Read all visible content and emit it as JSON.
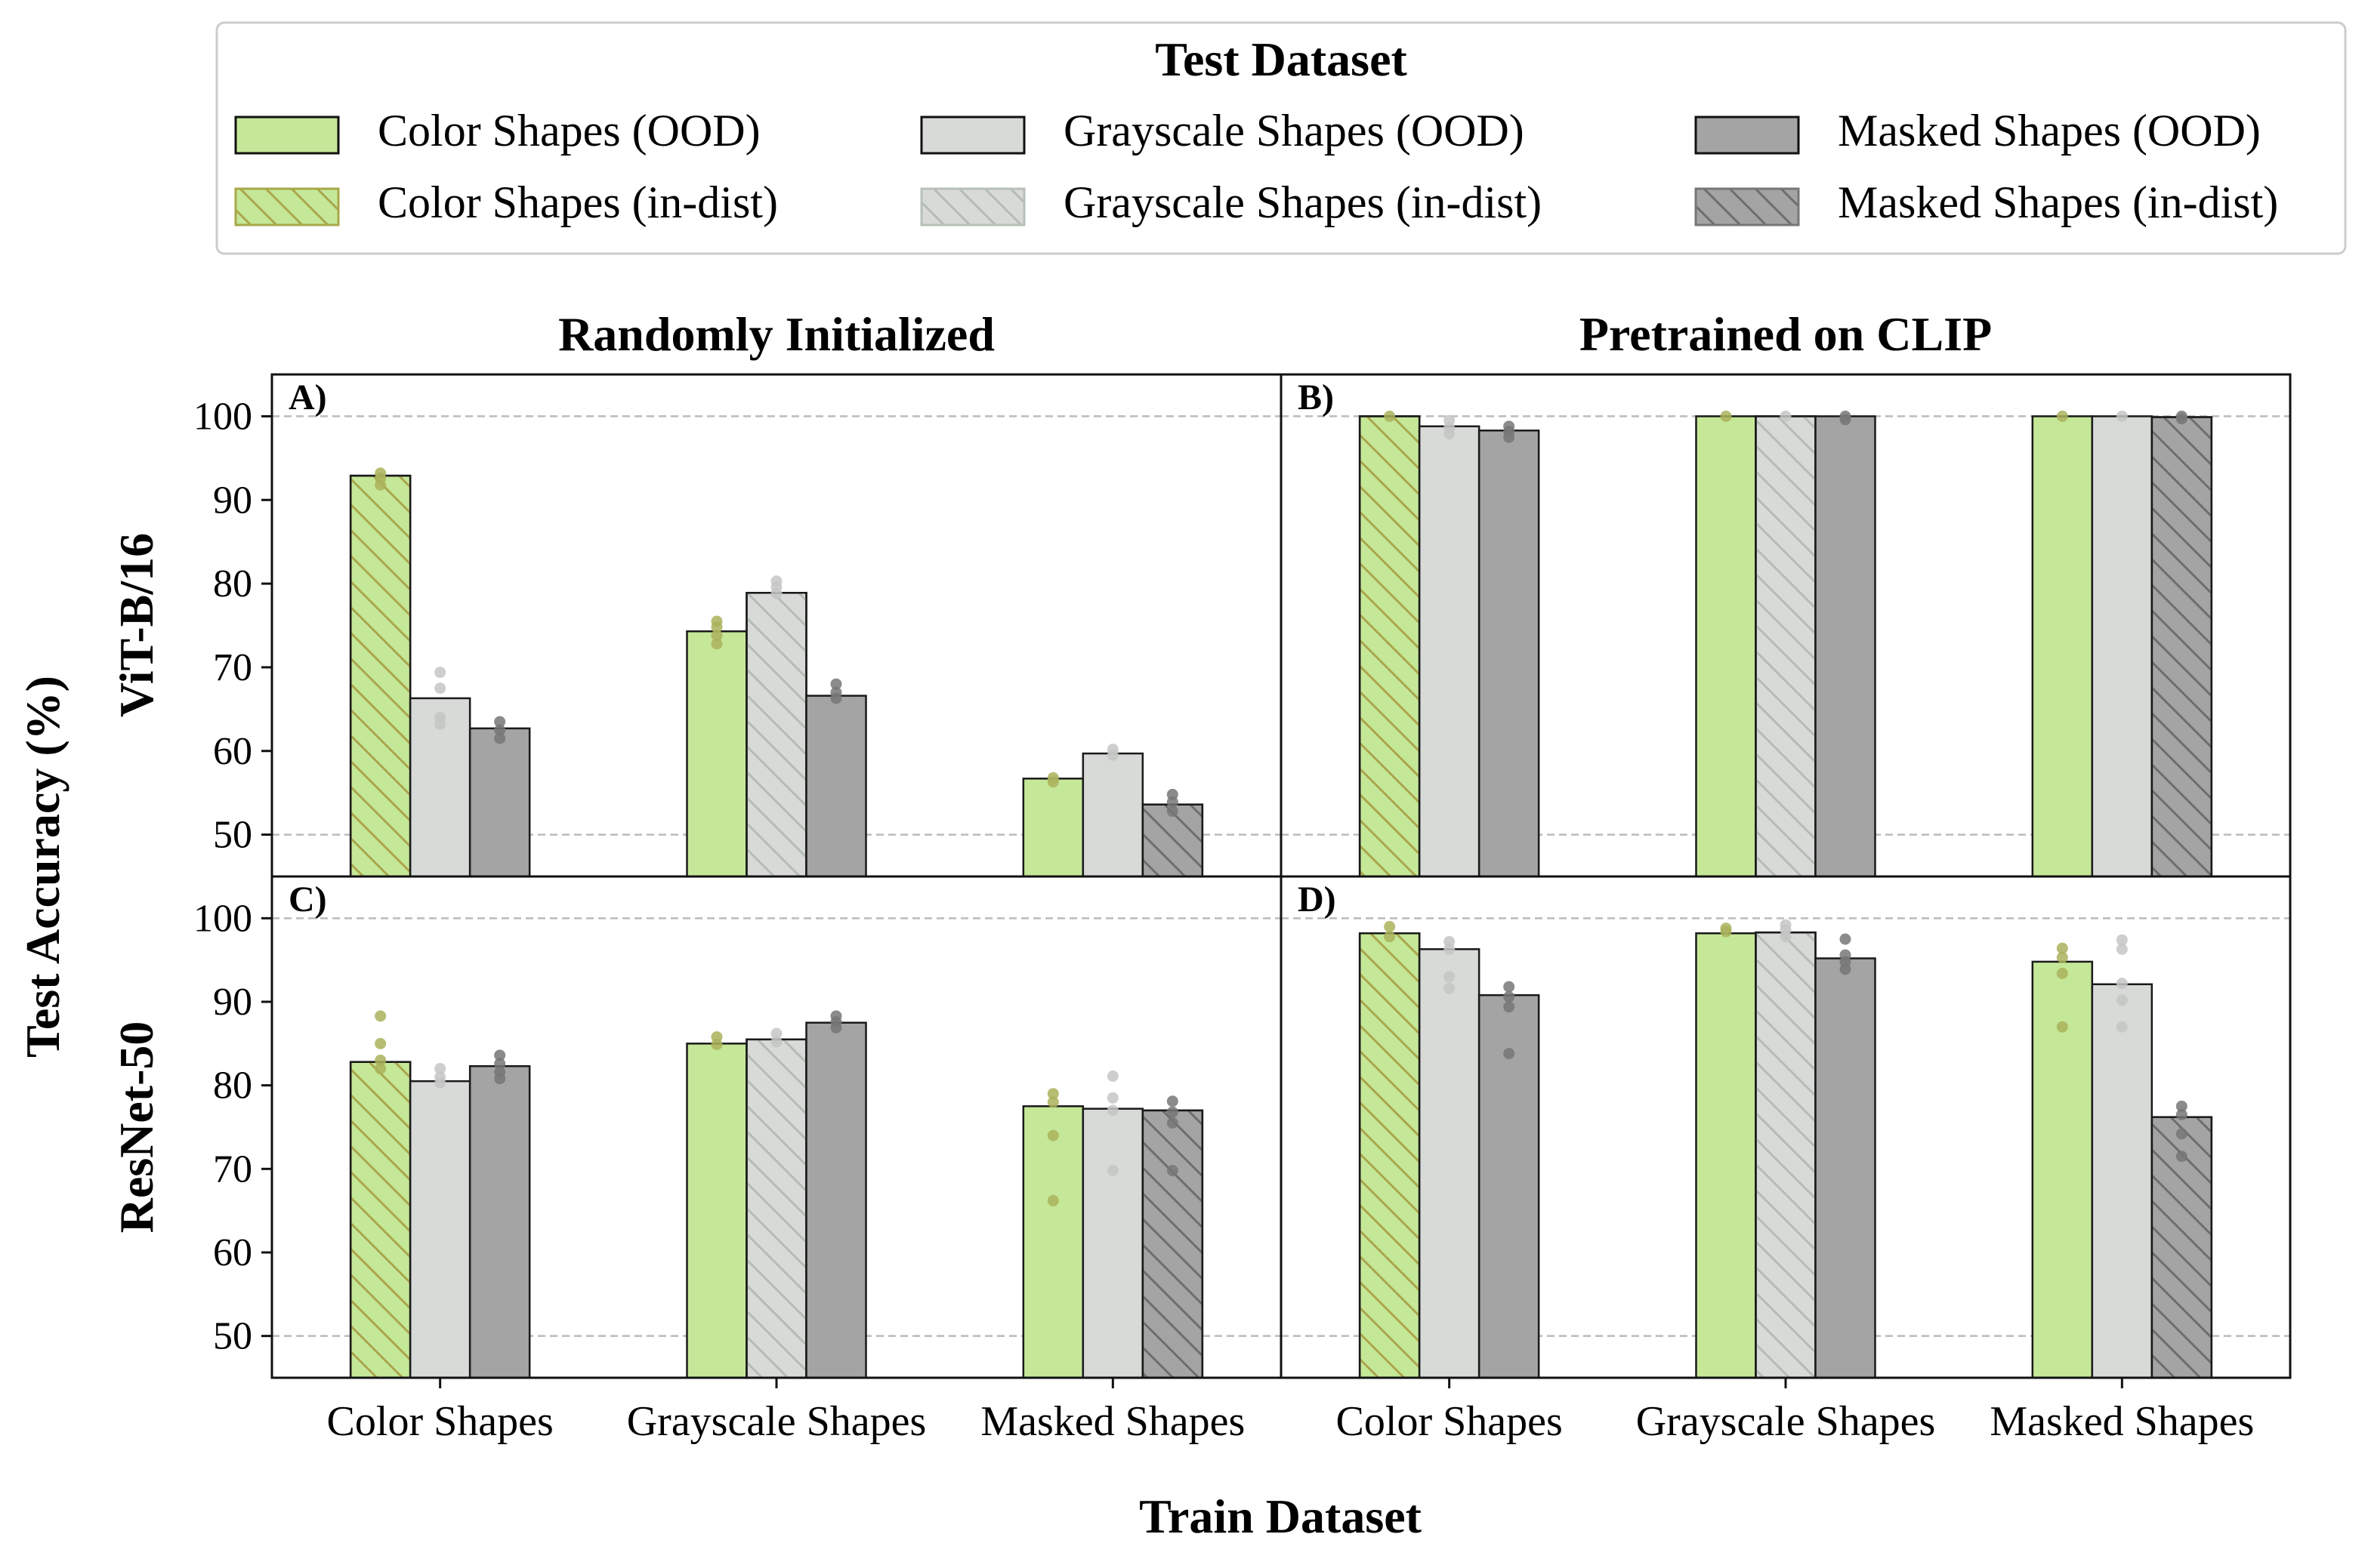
{
  "legend": {
    "title": "Test Dataset",
    "entries": [
      {
        "label": "Color Shapes (OOD)",
        "color": "#c5e898",
        "hatch": false,
        "edge": "#111111"
      },
      {
        "label": "Color Shapes (in-dist)",
        "color": "#c5e898",
        "hatch": true,
        "edge": "#a8a84a"
      },
      {
        "label": "Grayscale Shapes (OOD)",
        "color": "#d8dad8",
        "hatch": false,
        "edge": "#111111"
      },
      {
        "label": "Grayscale Shapes (in-dist)",
        "color": "#d8dad8",
        "hatch": true,
        "edge": "#b7c0b7"
      },
      {
        "label": "Masked Shapes (OOD)",
        "color": "#a4a4a4",
        "hatch": false,
        "edge": "#111111"
      },
      {
        "label": "Masked Shapes (in-dist)",
        "color": "#a4a4a4",
        "hatch": true,
        "edge": "#777777"
      }
    ]
  },
  "column_titles": [
    "Randomly Initialized",
    "Pretrained on CLIP"
  ],
  "row_titles": [
    "ViT-B/16",
    "ResNet-50"
  ],
  "ylabel": "Test Accuracy (%)",
  "xlabel": "Train Dataset",
  "categories": [
    "Color Shapes",
    "Grayscale Shapes",
    "Masked Shapes"
  ],
  "colors": {
    "color": "#c5e898",
    "gray": "#d8dad8",
    "masked": "#a4a4a4",
    "dot_color": "#aab25a",
    "dot_gray": "#c4c6c4",
    "dot_masked": "#777777"
  },
  "chart_data": {
    "type": "bar",
    "ylim": [
      45,
      105
    ],
    "yticks": [
      50,
      60,
      70,
      80,
      90,
      100
    ],
    "gridlines": [
      50,
      100
    ],
    "series_names": [
      "Color Shapes",
      "Grayscale Shapes",
      "Masked Shapes"
    ],
    "panels": [
      {
        "label": "A)",
        "row": 0,
        "col": 0,
        "values": [
          [
            92.9,
            66.3,
            62.7
          ],
          [
            74.3,
            78.9,
            66.6
          ],
          [
            56.7,
            59.7,
            53.6
          ]
        ],
        "points": [
          [
            [
              93.2,
              92.6,
              91.8
            ],
            [
              69.4,
              67.5,
              64.0,
              63.2
            ],
            [
              63.5,
              62.5,
              61.5
            ]
          ],
          [
            [
              75.5,
              74.8,
              73.8,
              72.8
            ],
            [
              80.3,
              79.6,
              78.8
            ],
            [
              68.0,
              67.0,
              66.3
            ]
          ],
          [
            [
              56.8,
              56.3
            ],
            [
              60.2,
              59.5
            ],
            [
              54.8,
              53.9,
              52.8
            ]
          ]
        ]
      },
      {
        "label": "B)",
        "row": 0,
        "col": 1,
        "values": [
          [
            100.0,
            98.8,
            98.3
          ],
          [
            100.0,
            100.0,
            100.0
          ],
          [
            100.0,
            100.0,
            99.9
          ]
        ],
        "points": [
          [
            [
              100.0
            ],
            [
              99.5,
              98.6,
              97.9
            ],
            [
              98.8,
              98.2,
              97.5
            ]
          ],
          [
            [
              100.0
            ],
            [
              100.0
            ],
            [
              100.0,
              99.6
            ]
          ],
          [
            [
              100.0
            ],
            [
              100.0
            ],
            [
              100.0,
              99.7
            ]
          ]
        ]
      },
      {
        "label": "C)",
        "row": 1,
        "col": 0,
        "values": [
          [
            82.8,
            80.5,
            82.3
          ],
          [
            85.0,
            85.5,
            87.5
          ],
          [
            77.5,
            77.2,
            77.0
          ]
        ],
        "points": [
          [
            [
              88.3,
              85.0,
              83.0,
              82.0
            ],
            [
              82.0,
              81.0,
              80.3
            ],
            [
              83.6,
              82.6,
              81.6,
              80.8
            ]
          ],
          [
            [
              85.8,
              84.9
            ],
            [
              86.2,
              85.2
            ],
            [
              88.3,
              87.6,
              86.9
            ]
          ],
          [
            [
              79.0,
              78.0,
              74.0,
              66.2
            ],
            [
              81.1,
              78.5,
              77.0,
              69.8
            ],
            [
              78.1,
              76.8,
              75.5,
              69.8
            ]
          ]
        ]
      },
      {
        "label": "D)",
        "row": 1,
        "col": 1,
        "values": [
          [
            98.2,
            96.3,
            90.8
          ],
          [
            98.2,
            98.3,
            95.2
          ],
          [
            94.8,
            92.1,
            76.2
          ]
        ],
        "points": [
          [
            [
              99.0,
              97.8
            ],
            [
              97.2,
              96.3,
              93.0,
              91.6
            ],
            [
              91.8,
              90.6,
              89.4,
              83.8
            ]
          ],
          [
            [
              98.8,
              98.4
            ],
            [
              99.2,
              98.6,
              97.8
            ],
            [
              97.5,
              95.6,
              94.8,
              93.9
            ]
          ],
          [
            [
              96.4,
              95.3,
              93.4,
              87.0
            ],
            [
              97.4,
              96.3,
              92.2,
              90.2,
              87.0
            ],
            [
              77.5,
              76.5,
              74.2,
              71.5
            ]
          ]
        ]
      }
    ]
  }
}
